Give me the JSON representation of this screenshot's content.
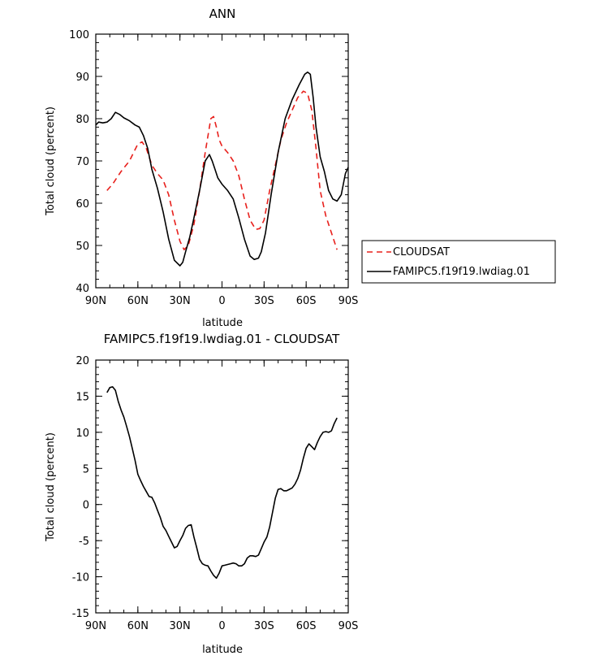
{
  "chart_data": [
    {
      "type": "line",
      "title": "ANN",
      "xlabel": "latitude",
      "ylabel": "Total cloud (percent)",
      "xlim": [
        90,
        -90
      ],
      "ylim": [
        40,
        100
      ],
      "y_ticks": [
        40,
        50,
        60,
        70,
        80,
        90,
        100
      ],
      "x_ticks": [
        90,
        60,
        30,
        0,
        -30,
        -60,
        -90
      ],
      "x_tick_labels": [
        "90N",
        "60N",
        "30N",
        "0",
        "30S",
        "60S",
        "90S"
      ],
      "legend_position": "right",
      "series": [
        {
          "name": "CLOUDSAT",
          "color": "#e8201c",
          "dash": "dashed",
          "x": [
            82,
            78,
            72,
            66,
            60,
            57,
            54,
            50,
            46,
            42,
            38,
            34,
            30,
            27,
            24,
            20,
            16,
            12,
            8,
            6,
            4,
            2,
            0,
            -4,
            -8,
            -12,
            -16,
            -20,
            -24,
            -27,
            -30,
            -34,
            -38,
            -42,
            -46,
            -50,
            -54,
            -58,
            -61,
            -64,
            -67,
            -70,
            -74,
            -78,
            -82
          ],
          "y": [
            63,
            64.5,
            67.5,
            70,
            74,
            74.5,
            73,
            69,
            67,
            65.5,
            62,
            56,
            51,
            49,
            50,
            55,
            63,
            72,
            80,
            80.5,
            78,
            75,
            73.5,
            72,
            70,
            66.5,
            61,
            56,
            53.8,
            54,
            56,
            63,
            69,
            75,
            79,
            82,
            85,
            86.5,
            86,
            82,
            73,
            63,
            57,
            53,
            49
          ]
        },
        {
          "name": "FAMIPC5.f19f19.lwdiag.01",
          "color": "#000000",
          "dash": "solid",
          "x": [
            90,
            88,
            85,
            82,
            79,
            76,
            73,
            70,
            66,
            62,
            59,
            56,
            53,
            50,
            46,
            42,
            38,
            34,
            30,
            28,
            26,
            23,
            20,
            16,
            12,
            9,
            7,
            5,
            3,
            0,
            -4,
            -8,
            -12,
            -16,
            -20,
            -23,
            -26,
            -28,
            -31,
            -35,
            -40,
            -45,
            -50,
            -55,
            -59,
            -61,
            -63,
            -65,
            -67,
            -70,
            -73,
            -76,
            -79,
            -82,
            -85,
            -88,
            -90
          ],
          "y": [
            78.5,
            79.2,
            79,
            79.2,
            80,
            81.5,
            81,
            80.2,
            79.5,
            78.5,
            78,
            76,
            73,
            68,
            63.5,
            58,
            51.5,
            46.5,
            45.2,
            46,
            48.5,
            52,
            56.5,
            63,
            70,
            71.5,
            70,
            68,
            66,
            64.5,
            63,
            61,
            56.5,
            51.5,
            47.5,
            46.7,
            47,
            48.5,
            53,
            62,
            72,
            80,
            84.5,
            88,
            90.5,
            91,
            90.5,
            85,
            78,
            71,
            67.5,
            63,
            61,
            60.5,
            62,
            67,
            68.5
          ]
        }
      ]
    },
    {
      "type": "line",
      "title": "FAMIPC5.f19f19.lwdiag.01 - CLOUDSAT",
      "xlabel": "latitude",
      "ylabel": "Total cloud (percent)",
      "xlim": [
        90,
        -90
      ],
      "ylim": [
        -15,
        20
      ],
      "y_ticks": [
        -15,
        -10,
        -5,
        0,
        5,
        10,
        15,
        20
      ],
      "x_ticks": [
        90,
        60,
        30,
        0,
        -30,
        -60,
        -90
      ],
      "x_tick_labels": [
        "90N",
        "60N",
        "30N",
        "0",
        "30S",
        "60S",
        "90S"
      ],
      "series": [
        {
          "color": "#000000",
          "dash": "solid",
          "x": [
            82,
            80,
            78,
            76,
            74,
            72,
            70,
            68,
            66,
            64,
            62,
            60,
            58,
            56,
            54,
            52,
            50,
            48,
            46,
            44,
            42,
            40,
            38,
            36,
            34,
            32,
            30,
            28,
            26,
            24,
            22,
            20,
            18,
            16,
            14,
            12,
            10,
            8,
            6,
            4,
            2,
            0,
            -2,
            -4,
            -6,
            -8,
            -10,
            -12,
            -14,
            -16,
            -18,
            -20,
            -22,
            -24,
            -26,
            -28,
            -30,
            -32,
            -34,
            -36,
            -38,
            -40,
            -42,
            -44,
            -46,
            -48,
            -50,
            -52,
            -54,
            -56,
            -58,
            -60,
            -62,
            -64,
            -66,
            -68,
            -70,
            -72,
            -74,
            -76,
            -78,
            -80,
            -82
          ],
          "y": [
            15.5,
            16.2,
            16.3,
            15.8,
            14.3,
            13.1,
            12.1,
            10.8,
            9.4,
            7.8,
            6.1,
            4.2,
            3.3,
            2.5,
            1.8,
            1.1,
            1,
            0.2,
            -0.8,
            -1.8,
            -3,
            -3.6,
            -4.4,
            -5.2,
            -6,
            -5.8,
            -5,
            -4.3,
            -3.3,
            -2.9,
            -2.8,
            -4.5,
            -6,
            -7.6,
            -8.2,
            -8.4,
            -8.5,
            -9.2,
            -9.8,
            -10.2,
            -9.5,
            -8.5,
            -8.4,
            -8.3,
            -8.2,
            -8.1,
            -8.2,
            -8.5,
            -8.5,
            -8.2,
            -7.4,
            -7.1,
            -7.1,
            -7.2,
            -7,
            -6.1,
            -5.2,
            -4.5,
            -3.1,
            -1.1,
            0.9,
            2.1,
            2.2,
            1.9,
            1.9,
            2.1,
            2.3,
            2.8,
            3.6,
            4.8,
            6.4,
            7.8,
            8.4,
            8,
            7.6,
            8.6,
            9.4,
            10,
            10.1,
            10,
            10.2,
            11.2,
            12
          ]
        }
      ]
    }
  ]
}
